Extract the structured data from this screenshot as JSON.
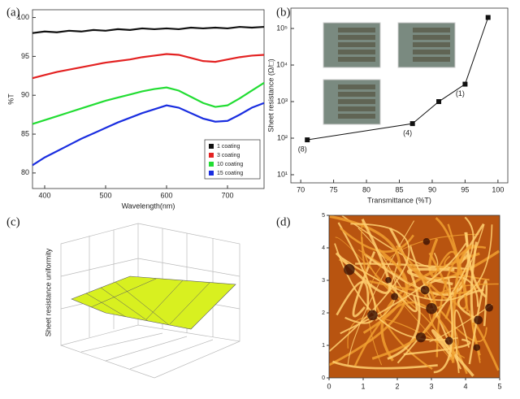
{
  "chart_data": [
    {
      "type": "line",
      "panel_label": "(a)",
      "xlabel": "Wavelength(nm)",
      "ylabel": "%T",
      "x": [
        380,
        400,
        420,
        440,
        460,
        480,
        500,
        520,
        540,
        560,
        580,
        600,
        620,
        640,
        660,
        680,
        700,
        720,
        740,
        760
      ],
      "xlim": [
        380,
        760
      ],
      "xticks": [
        400,
        500,
        600,
        700
      ],
      "ylim": [
        78,
        101
      ],
      "yticks": [
        80,
        85,
        90,
        95,
        100
      ],
      "series": [
        {
          "name": "1 coating",
          "color": "#111111",
          "values": [
            98.0,
            98.2,
            98.1,
            98.3,
            98.2,
            98.4,
            98.3,
            98.5,
            98.4,
            98.6,
            98.5,
            98.6,
            98.5,
            98.7,
            98.6,
            98.7,
            98.6,
            98.8,
            98.7,
            98.8
          ]
        },
        {
          "name": "3 coating",
          "color": "#e32222",
          "values": [
            92.2,
            92.6,
            93.0,
            93.3,
            93.6,
            93.9,
            94.2,
            94.4,
            94.6,
            94.9,
            95.1,
            95.3,
            95.2,
            94.8,
            94.4,
            94.3,
            94.6,
            94.9,
            95.1,
            95.2
          ]
        },
        {
          "name": "10 coating",
          "color": "#22dd33",
          "values": [
            86.3,
            86.8,
            87.3,
            87.8,
            88.3,
            88.8,
            89.3,
            89.7,
            90.1,
            90.5,
            90.8,
            91.0,
            90.6,
            89.8,
            89.0,
            88.5,
            88.7,
            89.6,
            90.6,
            91.6
          ]
        },
        {
          "name": "15 coating",
          "color": "#1a2ee0",
          "values": [
            81.0,
            82.0,
            82.8,
            83.6,
            84.4,
            85.1,
            85.8,
            86.5,
            87.1,
            87.7,
            88.2,
            88.7,
            88.4,
            87.7,
            87.0,
            86.6,
            86.7,
            87.5,
            88.4,
            89.0
          ]
        }
      ]
    },
    {
      "type": "scatter",
      "panel_label": "(b)",
      "xlabel": "Transmittance (%T)",
      "ylabel": "Sheet resistance (Ω/□)",
      "x": [
        71,
        87,
        91,
        95,
        98.5
      ],
      "values": [
        90,
        250,
        1000,
        3000,
        200000
      ],
      "color": "#111111",
      "xlim": [
        68.5,
        101.5
      ],
      "xticks": [
        70,
        75,
        80,
        85,
        90,
        95,
        100
      ],
      "log_y": true,
      "ylim": [
        6,
        360000
      ],
      "yticks": [
        {
          "value": 10,
          "label": "10¹"
        },
        {
          "value": 100,
          "label": "10²"
        },
        {
          "value": 1000,
          "label": "10³"
        },
        {
          "value": 10000,
          "label": "10⁴"
        },
        {
          "value": 100000,
          "label": "10⁵"
        }
      ],
      "annotations": [
        {
          "text": "(8)",
          "x": 71,
          "y": 90
        },
        {
          "text": "(4)",
          "x": 87,
          "y": 250
        },
        {
          "text": "(1)",
          "x": 95,
          "y": 3000
        }
      ]
    },
    {
      "type": "surface",
      "panel_label": "(c)",
      "zlabel": "Sheet resistance uniformity",
      "color": "#d8f020"
    },
    {
      "type": "image",
      "panel_label": "(d)",
      "xlim": [
        0,
        5
      ],
      "xticks": [
        0,
        1,
        2,
        3,
        4,
        5
      ],
      "ylim": [
        0,
        5
      ],
      "yticks": [
        0,
        1,
        2,
        3,
        4,
        5
      ]
    }
  ]
}
